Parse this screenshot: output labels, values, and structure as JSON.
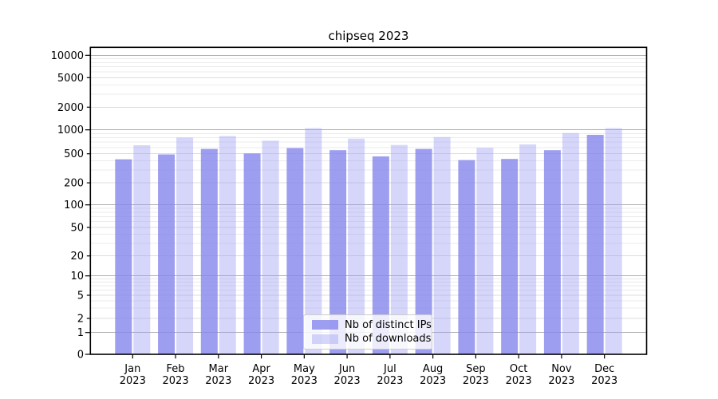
{
  "chart_data": {
    "type": "bar",
    "title": "chipseq 2023",
    "categories": [
      "Jan",
      "Feb",
      "Mar",
      "Apr",
      "May",
      "Jun",
      "Jul",
      "Aug",
      "Sep",
      "Oct",
      "Nov",
      "Dec"
    ],
    "category_year": "2023",
    "series": [
      {
        "name": "Nb of distinct IPs",
        "color": "rgba(134,134,238,0.80)",
        "values": [
          420,
          490,
          575,
          505,
          590,
          555,
          460,
          575,
          410,
          425,
          555,
          865
        ]
      },
      {
        "name": "Nb of downloads",
        "color": "rgba(158,158,242,0.42)",
        "values": [
          640,
          800,
          835,
          730,
          1050,
          775,
          645,
          810,
          595,
          655,
          910,
          1050
        ]
      }
    ],
    "xlabel": "",
    "ylabel": "",
    "yscale": "symlog",
    "ylim": [
      0,
      12800
    ],
    "y_tick_values": [
      0,
      1,
      2,
      5,
      10,
      20,
      50,
      100,
      200,
      500,
      1000,
      2000,
      5000,
      10000
    ],
    "y_tick_labels": [
      "0",
      "1",
      "2",
      "5",
      "10",
      "20",
      "50",
      "100",
      "200",
      "500",
      "1000",
      "2000",
      "5000",
      "10000"
    ],
    "grid": true,
    "legend_position": "lower center inside",
    "colors": {
      "axis": "#000000",
      "grid_major": "#b0b0b0",
      "grid_mid": "#dcdcdc",
      "grid_minor": "#ebebeb",
      "background": "#ffffff",
      "text": "#000000"
    }
  }
}
